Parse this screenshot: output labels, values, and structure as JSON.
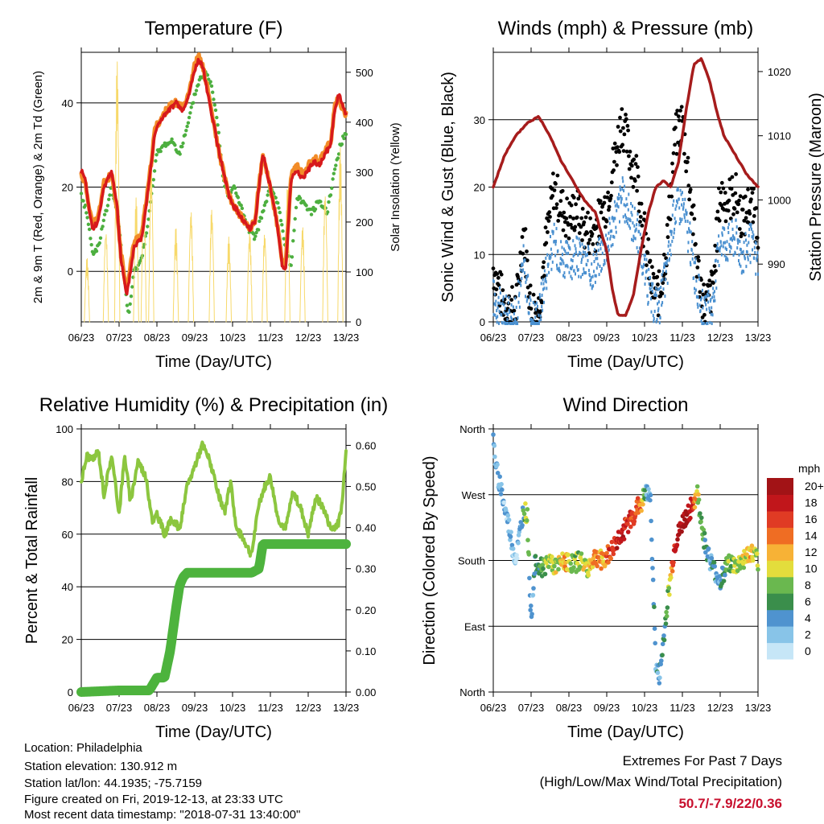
{
  "footer": {
    "location": "Location: Philadelphia",
    "elevation": "Station elevation: 130.912 m",
    "latlon": "Station lat/lon: 44.1935; -75.7159",
    "created": "Figure created on Fri, 2019-12-13, at 23:33 UTC",
    "recent": "Most recent data timestamp: \"2018-07-31 13:40:00\"",
    "extremes_title": "Extremes For Past 7 Days",
    "extremes_sub": "(High/Low/Max Wind/Total Precipitation)",
    "extremes_values": "50.7/-7.9/22/0.36"
  },
  "chart_data": [
    {
      "type": "line",
      "title": "Temperature (F)",
      "xlabel": "Time (Day/UTC)",
      "ylabel": "2m & 9m T (Red, Orange) & 2m Td (Green)",
      "ylabel_right": "Solar Insolation (Yellow)",
      "x_ticks": [
        "06/23",
        "07/23",
        "08/23",
        "09/23",
        "10/23",
        "11/23",
        "12/23",
        "13/23"
      ],
      "xlim": [
        0,
        7
      ],
      "ylim": [
        -12,
        52
      ],
      "y_ticks": [
        0,
        20,
        40
      ],
      "ylim_right": [
        0,
        540
      ],
      "y_ticks_right": [
        0,
        100,
        200,
        300,
        400,
        500
      ],
      "grid": true,
      "series": [
        {
          "name": "2m T",
          "color": "#d7191c",
          "axis": "left",
          "x": [
            0,
            0.1,
            0.2,
            0.3,
            0.45,
            0.6,
            0.8,
            0.95,
            1.05,
            1.2,
            1.4,
            1.6,
            1.8,
            1.95,
            2.1,
            2.3,
            2.5,
            2.7,
            2.85,
            3.0,
            3.1,
            3.2,
            3.35,
            3.5,
            3.65,
            3.8,
            3.9,
            4.0,
            4.15,
            4.3,
            4.45,
            4.6,
            4.7,
            4.8,
            4.9,
            5.0,
            5.1,
            5.2,
            5.3,
            5.4,
            5.55,
            5.7,
            5.85,
            6.0,
            6.15,
            6.3,
            6.45,
            6.6,
            6.7,
            6.8,
            6.9,
            7.0
          ],
          "y": [
            24,
            22,
            15,
            10,
            12,
            20,
            24,
            15,
            3,
            -6,
            6,
            8,
            22,
            33,
            36,
            38,
            40,
            38,
            42,
            48,
            50,
            49,
            42,
            35,
            28,
            22,
            18,
            16,
            14,
            12,
            10,
            12,
            20,
            28,
            24,
            20,
            15,
            10,
            2,
            0,
            22,
            24,
            22,
            24,
            26,
            25,
            28,
            30,
            38,
            42,
            40,
            37
          ]
        },
        {
          "name": "9m T",
          "color": "#f28c28",
          "axis": "left",
          "x": [
            0,
            0.1,
            0.2,
            0.3,
            0.45,
            0.6,
            0.8,
            0.95,
            1.05,
            1.2,
            1.4,
            1.6,
            1.8,
            1.95,
            2.1,
            2.3,
            2.5,
            2.7,
            2.85,
            3.0,
            3.1,
            3.2,
            3.35,
            3.5,
            3.65,
            3.8,
            3.9,
            4.0,
            4.15,
            4.3,
            4.45,
            4.6,
            4.7,
            4.8,
            4.9,
            5.0,
            5.1,
            5.2,
            5.3,
            5.4,
            5.55,
            5.7,
            5.85,
            6.0,
            6.15,
            6.3,
            6.45,
            6.6,
            6.7,
            6.8,
            6.9,
            7.0
          ],
          "y": [
            23,
            21,
            16,
            11,
            13,
            21,
            23,
            14,
            4,
            -4,
            7,
            9,
            22,
            34,
            36,
            39,
            40,
            39,
            43,
            49,
            51,
            49,
            43,
            35,
            28,
            22,
            18,
            16,
            14,
            12,
            10,
            12,
            21,
            27,
            24,
            20,
            15,
            10,
            3,
            1,
            23,
            25,
            23,
            25,
            27,
            26,
            29,
            31,
            39,
            41,
            39,
            37
          ]
        },
        {
          "name": "2m Td",
          "color": "#4daf3f",
          "axis": "left",
          "x": [
            0,
            0.15,
            0.3,
            0.45,
            0.6,
            0.8,
            0.95,
            1.1,
            1.25,
            1.4,
            1.6,
            1.8,
            2.0,
            2.2,
            2.4,
            2.6,
            2.8,
            3.0,
            3.15,
            3.3,
            3.45,
            3.6,
            3.75,
            3.9,
            4.05,
            4.2,
            4.4,
            4.6,
            4.8,
            5.0,
            5.2,
            5.4,
            5.55,
            5.7,
            5.9,
            6.1,
            6.3,
            6.5,
            6.7,
            6.85,
            7.0
          ],
          "y": [
            18,
            14,
            4,
            6,
            12,
            20,
            14,
            2,
            -11,
            0,
            3,
            14,
            28,
            30,
            31,
            28,
            34,
            42,
            46,
            47,
            44,
            36,
            22,
            18,
            20,
            16,
            10,
            8,
            14,
            20,
            16,
            6,
            1,
            18,
            16,
            14,
            17,
            14,
            24,
            30,
            33
          ]
        },
        {
          "name": "Solar Insolation",
          "color": "#f7d96b",
          "axis": "right",
          "peaks_x": [
            0.15,
            0.65,
            0.95,
            1.45,
            1.65,
            1.85,
            2.5,
            2.9,
            3.45,
            3.9,
            4.45,
            4.85,
            5.45,
            5.85,
            6.45,
            6.85
          ],
          "peaks_y": [
            130,
            200,
            540,
            250,
            260,
            330,
            190,
            240,
            240,
            170,
            190,
            190,
            270,
            200,
            280,
            350
          ]
        }
      ]
    },
    {
      "type": "scatter",
      "title": "Winds (mph) & Pressure (mb)",
      "xlabel": "Time (Day/UTC)",
      "ylabel": "Sonic Wind & Gust (Blue, Black)",
      "ylabel_right": "Station Pressure (Maroon)",
      "x_ticks": [
        "06/23",
        "07/23",
        "08/23",
        "09/23",
        "10/23",
        "11/23",
        "12/23",
        "13/23"
      ],
      "xlim": [
        0,
        7
      ],
      "ylim": [
        0,
        40
      ],
      "y_ticks": [
        0,
        10,
        20,
        30
      ],
      "ylim_right": [
        981,
        1023
      ],
      "y_ticks_right": [
        990,
        1000,
        1010,
        1020
      ],
      "grid": true,
      "series": [
        {
          "name": "Sonic Wind",
          "color": "#4a90d0",
          "x": [
            0,
            0.2,
            0.4,
            0.6,
            0.8,
            1.0,
            1.2,
            1.4,
            1.6,
            1.8,
            2.0,
            2.2,
            2.4,
            2.6,
            2.8,
            3.0,
            3.2,
            3.4,
            3.6,
            3.8,
            4.0,
            4.2,
            4.4,
            4.6,
            4.8,
            5.0,
            5.2,
            5.4,
            5.6,
            5.8,
            6.0,
            6.2,
            6.4,
            6.6,
            6.8,
            7.0
          ],
          "y": [
            4,
            2,
            1,
            1,
            9,
            1,
            1,
            8,
            12,
            10,
            9,
            10,
            9,
            8,
            10,
            12,
            15,
            19,
            16,
            14,
            8,
            3,
            3,
            8,
            17,
            18,
            12,
            5,
            1,
            3,
            13,
            12,
            13,
            10,
            12,
            9
          ]
        },
        {
          "name": "Gust",
          "color": "#000000",
          "x": [
            0,
            0.2,
            0.4,
            0.6,
            0.8,
            1.0,
            1.2,
            1.4,
            1.6,
            1.8,
            2.0,
            2.2,
            2.4,
            2.6,
            2.8,
            3.0,
            3.2,
            3.4,
            3.6,
            3.8,
            4.0,
            4.2,
            4.4,
            4.6,
            4.8,
            5.0,
            5.2,
            5.4,
            5.6,
            5.8,
            6.0,
            6.2,
            6.4,
            6.6,
            6.8,
            7.0
          ],
          "y": [
            8,
            4,
            2,
            2,
            14,
            2,
            2,
            12,
            20,
            17,
            15,
            17,
            14,
            13,
            15,
            18,
            24,
            30,
            25,
            22,
            13,
            5,
            4,
            12,
            27,
            30,
            20,
            8,
            2,
            5,
            19,
            18,
            19,
            15,
            18,
            14
          ]
        },
        {
          "name": "Station Pressure",
          "color": "#a61c1c",
          "x": [
            0,
            0.3,
            0.6,
            0.9,
            1.2,
            1.5,
            1.8,
            2.1,
            2.4,
            2.7,
            3.0,
            3.15,
            3.3,
            3.5,
            3.7,
            3.9,
            4.1,
            4.3,
            4.5,
            4.7,
            4.9,
            5.1,
            5.3,
            5.5,
            5.7,
            5.9,
            6.1,
            6.3,
            6.5,
            6.7,
            7.0
          ],
          "y": [
            1002,
            1007,
            1010,
            1012,
            1013,
            1010,
            1006,
            1003,
            1000,
            998,
            992,
            986,
            982,
            982,
            985,
            992,
            998,
            1002,
            1003,
            1002,
            1006,
            1014,
            1021,
            1022,
            1019,
            1014,
            1010,
            1008,
            1006,
            1004,
            1002
          ]
        }
      ]
    },
    {
      "type": "line",
      "title": "Relative Humidity (%) & Precipitation (in)",
      "xlabel": "Time (Day/UTC)",
      "ylabel": "Percent & Total Rainfall",
      "x_ticks": [
        "06/23",
        "07/23",
        "08/23",
        "09/23",
        "10/23",
        "11/23",
        "12/23",
        "13/23"
      ],
      "xlim": [
        0,
        7
      ],
      "ylim": [
        0,
        100
      ],
      "y_ticks": [
        0,
        20,
        40,
        60,
        80,
        100
      ],
      "ylim_right": [
        0,
        0.64
      ],
      "y_ticks_right": [
        "0.00",
        "0.10",
        "0.20",
        "0.30",
        "0.40",
        "0.50",
        "0.60"
      ],
      "grid": true,
      "series": [
        {
          "name": "Relative Humidity",
          "color": "#8cc63f",
          "axis": "left",
          "x": [
            0,
            0.15,
            0.3,
            0.45,
            0.6,
            0.8,
            1.0,
            1.15,
            1.3,
            1.5,
            1.7,
            1.9,
            2.0,
            2.2,
            2.4,
            2.6,
            2.8,
            3.0,
            3.2,
            3.4,
            3.6,
            3.8,
            3.95,
            4.1,
            4.3,
            4.5,
            4.7,
            4.85,
            5.0,
            5.2,
            5.4,
            5.6,
            5.8,
            6.0,
            6.2,
            6.4,
            6.6,
            6.8,
            6.9,
            7.0
          ],
          "y": [
            80,
            90,
            88,
            92,
            75,
            90,
            68,
            90,
            72,
            88,
            82,
            64,
            68,
            60,
            66,
            62,
            78,
            86,
            94,
            88,
            76,
            68,
            80,
            62,
            58,
            52,
            72,
            78,
            82,
            66,
            62,
            76,
            70,
            60,
            74,
            70,
            62,
            64,
            72,
            93
          ]
        },
        {
          "name": "Total Precipitation",
          "color": "#4db33d",
          "axis": "right",
          "x": [
            0,
            0.5,
            1.0,
            1.5,
            1.8,
            2.0,
            2.2,
            2.35,
            2.5,
            2.6,
            2.7,
            2.8,
            3.0,
            3.5,
            4.0,
            4.5,
            4.7,
            4.8,
            5.0,
            5.5,
            6.0,
            6.5,
            7.0
          ],
          "y": [
            0.0,
            0.002,
            0.004,
            0.004,
            0.004,
            0.035,
            0.035,
            0.1,
            0.2,
            0.26,
            0.28,
            0.29,
            0.29,
            0.29,
            0.29,
            0.29,
            0.3,
            0.36,
            0.36,
            0.36,
            0.36,
            0.36,
            0.36
          ]
        }
      ]
    },
    {
      "type": "scatter",
      "title": "Wind Direction",
      "xlabel": "Time (Day/UTC)",
      "ylabel": "Direction (Colored By Speed)",
      "x_ticks": [
        "06/23",
        "07/23",
        "08/23",
        "09/23",
        "10/23",
        "11/23",
        "12/23",
        "13/23"
      ],
      "xlim": [
        0,
        7
      ],
      "y_ticks": [
        "North",
        "East",
        "South",
        "West",
        "North"
      ],
      "ylim": [
        0,
        360
      ],
      "grid": true,
      "colorbar_title": "mph",
      "colorbar_labels": [
        "0",
        "2",
        "4",
        "6",
        "8",
        "10",
        "12",
        "14",
        "16",
        "18",
        "20+"
      ],
      "colorbar_colors": [
        "#c6e6f7",
        "#88c4e8",
        "#4f93cf",
        "#3a8e4b",
        "#6ab84f",
        "#e3dd3c",
        "#f7b236",
        "#ef6d23",
        "#e03b24",
        "#c1161b",
        "#a21316"
      ],
      "series": [
        {
          "name": "Wind Direction",
          "x": [
            0,
            0.1,
            0.2,
            0.3,
            0.4,
            0.5,
            0.6,
            0.8,
            0.9,
            1.0,
            1.1,
            1.3,
            1.5,
            1.7,
            1.9,
            2.1,
            2.3,
            2.5,
            2.7,
            2.9,
            3.1,
            3.3,
            3.5,
            3.7,
            3.9,
            4.05,
            4.15,
            4.3,
            4.4,
            4.6,
            4.8,
            5.0,
            5.1,
            5.3,
            5.4,
            5.6,
            5.8,
            6.0,
            6.2,
            6.4,
            6.6,
            6.8,
            7.0
          ],
          "y": [
            340,
            300,
            280,
            250,
            230,
            200,
            180,
            250,
            240,
            100,
            180,
            170,
            180,
            170,
            180,
            175,
            180,
            170,
            185,
            180,
            190,
            210,
            225,
            240,
            260,
            270,
            275,
            30,
            20,
            120,
            200,
            230,
            240,
            260,
            270,
            200,
            170,
            150,
            180,
            170,
            180,
            190,
            180
          ],
          "speed": [
            3,
            3,
            4,
            2,
            3,
            2,
            1,
            6,
            10,
            2,
            4,
            7,
            9,
            10,
            12,
            8,
            9,
            10,
            14,
            12,
            16,
            18,
            17,
            16,
            14,
            4,
            3,
            4,
            4,
            7,
            18,
            19,
            20,
            16,
            10,
            5,
            4,
            4,
            7,
            9,
            10,
            12,
            8
          ]
        }
      ]
    }
  ]
}
